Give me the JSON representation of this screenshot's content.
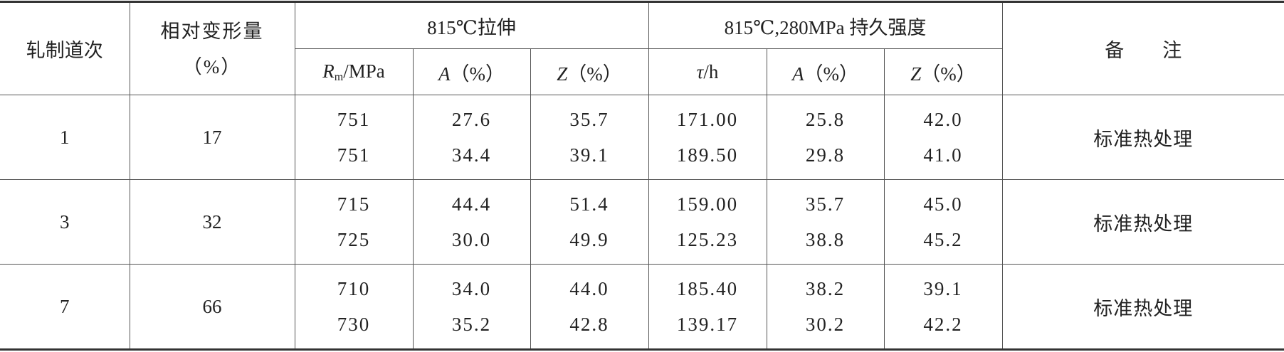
{
  "table": {
    "headers": {
      "pass": "轧制道次",
      "deformation": [
        "相对变形量",
        "（%）"
      ],
      "tensile": "815℃拉伸",
      "rupture": "815℃,280MPa 持久强度",
      "note": "备　　注",
      "sub": [
        {
          "symbol": "R",
          "subscript": "m",
          "unit": "/MPa"
        },
        {
          "symbol": "A",
          "unit": "（%）"
        },
        {
          "symbol": "Z",
          "unit": "（%）"
        },
        {
          "symbol": "τ",
          "unit": "/h"
        },
        {
          "symbol": "A",
          "unit": "（%）"
        },
        {
          "symbol": "Z",
          "unit": "（%）"
        }
      ]
    },
    "rows": [
      {
        "pass": "1",
        "deformation": "17",
        "values": [
          [
            "751",
            "27.6",
            "35.7",
            "171.00",
            "25.8",
            "42.0"
          ],
          [
            "751",
            "34.4",
            "39.1",
            "189.50",
            "29.8",
            "41.0"
          ]
        ],
        "note": "标准热处理"
      },
      {
        "pass": "3",
        "deformation": "32",
        "values": [
          [
            "715",
            "44.4",
            "51.4",
            "159.00",
            "35.7",
            "45.0"
          ],
          [
            "725",
            "30.0",
            "49.9",
            "125.23",
            "38.8",
            "45.2"
          ]
        ],
        "note": "标准热处理"
      },
      {
        "pass": "7",
        "deformation": "66",
        "values": [
          [
            "710",
            "34.0",
            "44.0",
            "185.40",
            "38.2",
            "39.1"
          ],
          [
            "730",
            "35.2",
            "42.8",
            "139.17",
            "30.2",
            "42.2"
          ]
        ],
        "note": "标准热处理"
      }
    ]
  }
}
